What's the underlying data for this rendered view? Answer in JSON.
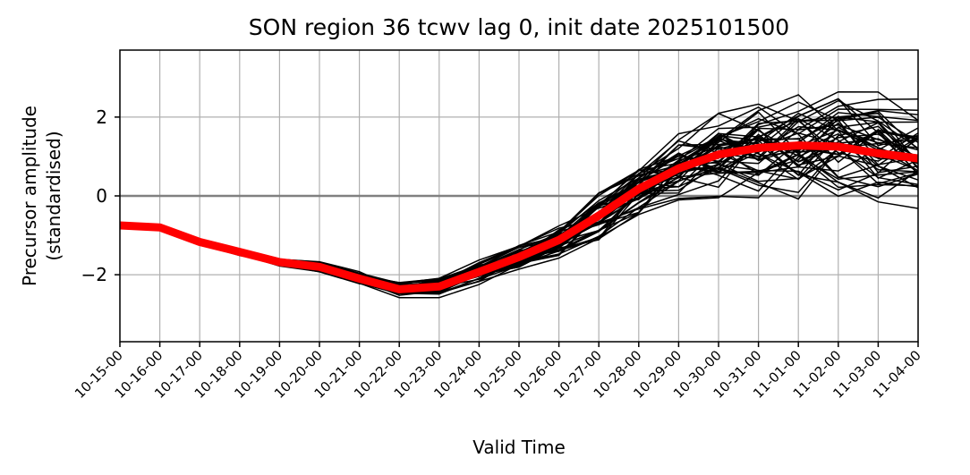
{
  "chart_data": {
    "type": "line",
    "title": "SON region 36 tcwv lag 0, init date 2025101500",
    "xlabel": "Valid Time",
    "ylabel": "Precursor amplitude",
    "ylabel_line2": "(standardised)",
    "x": [
      "10-15-00",
      "10-16-00",
      "10-17-00",
      "10-18-00",
      "10-19-00",
      "10-20-00",
      "10-21-00",
      "10-22-00",
      "10-23-00",
      "10-24-00",
      "10-25-00",
      "10-26-00",
      "10-27-00",
      "10-28-00",
      "10-29-00",
      "10-30-00",
      "10-31-00",
      "11-01-00",
      "11-02-00",
      "11-03-00",
      "11-04-00"
    ],
    "ylim": [
      -3.7,
      3.7
    ],
    "yticks": [
      -2,
      0,
      2
    ],
    "ytick_labels": [
      "−2",
      "0",
      "2"
    ],
    "grid": true,
    "reference_line": {
      "y": 0,
      "color": "#808080"
    },
    "mean_series": {
      "color": "#ff0000",
      "values": [
        -0.75,
        -0.8,
        -1.17,
        -1.42,
        -1.68,
        -1.8,
        -2.1,
        -2.37,
        -2.3,
        -1.93,
        -1.55,
        -1.12,
        -0.5,
        0.18,
        0.7,
        1.05,
        1.22,
        1.28,
        1.25,
        1.08,
        0.95
      ]
    },
    "ensemble": {
      "color": "#000000",
      "member_count": 50,
      "anchor_values": [
        -0.75,
        -0.8,
        -1.17,
        -1.42,
        -1.68,
        -1.8,
        -2.1,
        -2.37,
        -2.3,
        -1.93,
        -1.55,
        -1.12,
        -0.5,
        0.18,
        0.7,
        1.05,
        1.22,
        1.28,
        1.25,
        1.08,
        0.95
      ],
      "spread": [
        0.0,
        0.0,
        0.05,
        0.07,
        0.08,
        0.1,
        0.12,
        0.15,
        0.18,
        0.2,
        0.25,
        0.33,
        0.5,
        0.55,
        0.65,
        0.8,
        0.9,
        1.0,
        1.05,
        1.0,
        0.95
      ]
    }
  }
}
